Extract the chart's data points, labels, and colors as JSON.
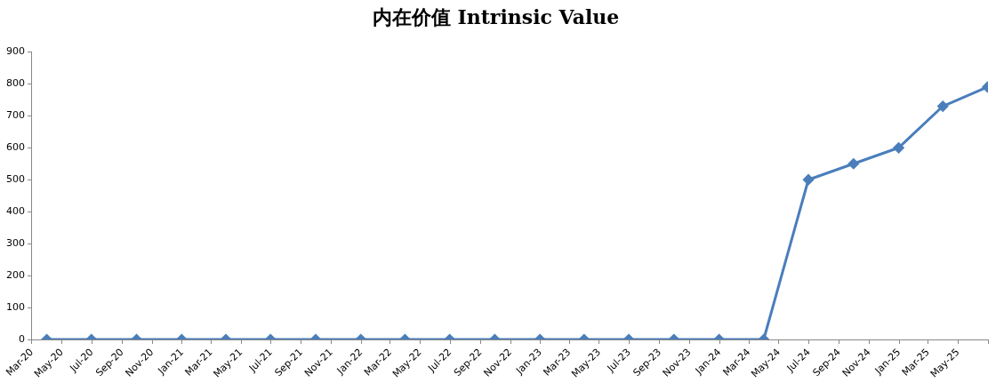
{
  "chart_data": {
    "type": "line",
    "title": "内在价值 Intrinsic Value",
    "x": [
      "2020-03-31",
      "2020-06-30",
      "2020-09-30",
      "2020-12-31",
      "2021-03-31",
      "2021-06-30",
      "2021-09-30",
      "2021-12-31",
      "2022-03-31",
      "2022-06-30",
      "2022-09-30",
      "2022-12-31",
      "2023-03-31",
      "2023-06-30",
      "2023-09-30",
      "2023-12-31",
      "2024-03-31",
      "2024-06-30",
      "2024-09-30",
      "2024-12-31",
      "2025-03-31",
      "2025-06-30"
    ],
    "series": [
      {
        "color": "#4a7ebb",
        "values": [
          0,
          0,
          0,
          0,
          0,
          0,
          0,
          0,
          0,
          0,
          0,
          0,
          0,
          0,
          0,
          0,
          0,
          500,
          550,
          600,
          730,
          790
        ]
      }
    ],
    "xlim": [
      "2020-03-01",
      "2025-07-01"
    ],
    "xticks": [
      {
        "value": "2020-03-01",
        "label": "Mar-20"
      },
      {
        "value": "2020-05-01",
        "label": "May-20"
      },
      {
        "value": "2020-07-01",
        "label": "Jul-20"
      },
      {
        "value": "2020-09-01",
        "label": "Sep-20"
      },
      {
        "value": "2020-11-01",
        "label": "Nov-20"
      },
      {
        "value": "2021-01-01",
        "label": "Jan-21"
      },
      {
        "value": "2021-03-01",
        "label": "Mar-21"
      },
      {
        "value": "2021-05-01",
        "label": "May-21"
      },
      {
        "value": "2021-07-01",
        "label": "Jul-21"
      },
      {
        "value": "2021-09-01",
        "label": "Sep-21"
      },
      {
        "value": "2021-11-01",
        "label": "Nov-21"
      },
      {
        "value": "2022-01-01",
        "label": "Jan-22"
      },
      {
        "value": "2022-03-01",
        "label": "Mar-22"
      },
      {
        "value": "2022-05-01",
        "label": "May-22"
      },
      {
        "value": "2022-07-01",
        "label": "Jul-22"
      },
      {
        "value": "2022-09-01",
        "label": "Sep-22"
      },
      {
        "value": "2022-11-01",
        "label": "Nov-22"
      },
      {
        "value": "2023-01-01",
        "label": "Jan-23"
      },
      {
        "value": "2023-03-01",
        "label": "Mar-23"
      },
      {
        "value": "2023-05-01",
        "label": "May-23"
      },
      {
        "value": "2023-07-01",
        "label": "Jul-23"
      },
      {
        "value": "2023-09-01",
        "label": "Sep-23"
      },
      {
        "value": "2023-11-01",
        "label": "Nov-23"
      },
      {
        "value": "2024-01-01",
        "label": "Jan-24"
      },
      {
        "value": "2024-03-01",
        "label": "Mar-24"
      },
      {
        "value": "2024-05-01",
        "label": "May-24"
      },
      {
        "value": "2024-07-01",
        "label": "Jul-24"
      },
      {
        "value": "2024-09-01",
        "label": "Sep-24"
      },
      {
        "value": "2024-11-01",
        "label": "Nov-24"
      },
      {
        "value": "2025-01-01",
        "label": "Jan-25"
      },
      {
        "value": "2025-03-01",
        "label": "Mar-25"
      },
      {
        "value": "2025-05-01",
        "label": "May-25"
      },
      {
        "value": "2025-07-01",
        "label": null
      }
    ],
    "ylim": [
      0,
      900
    ],
    "yticks": [
      0,
      100,
      200,
      300,
      400,
      500,
      600,
      700,
      800,
      900
    ],
    "marker": "diamond",
    "line_style": "solid",
    "grid": false,
    "legend": false
  }
}
